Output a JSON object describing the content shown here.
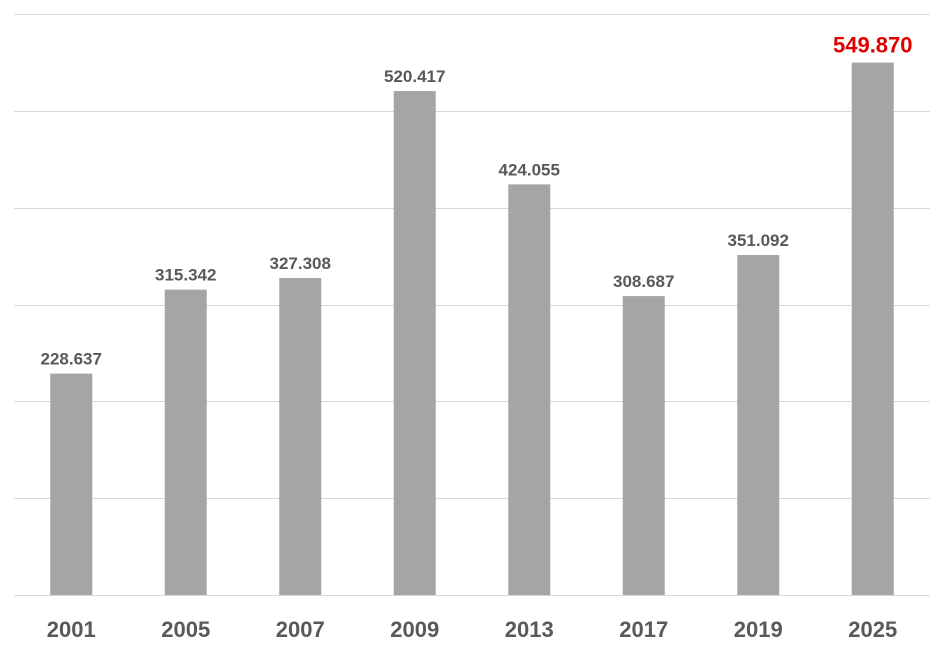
{
  "chart_data": {
    "type": "bar",
    "categories": [
      "2001",
      "2005",
      "2007",
      "2009",
      "2013",
      "2017",
      "2019",
      "2025"
    ],
    "values": [
      228637,
      315342,
      327308,
      520417,
      424055,
      308687,
      351092,
      549870
    ],
    "value_labels": [
      "228.637",
      "315.342",
      "327.308",
      "520.417",
      "424.055",
      "308.687",
      "351.092",
      "549.870"
    ],
    "highlight_index": 7,
    "ylim": [
      0,
      600000
    ],
    "y_grid_step": 100000,
    "grid": true,
    "title": "",
    "xlabel": "",
    "ylabel": "",
    "colors": {
      "bar": "#a5a5a5",
      "label": "#595959",
      "highlight_label": "#e00000",
      "grid": "#d9d9d9"
    }
  }
}
